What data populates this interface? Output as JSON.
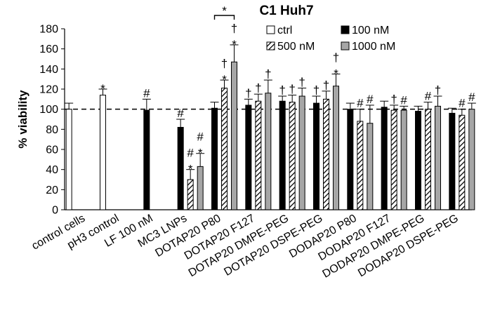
{
  "chart_data": {
    "type": "bar",
    "title": "C1 Huh7",
    "ylabel": "% viability",
    "xlabel": "",
    "ylim": [
      0,
      180
    ],
    "yticks": [
      0,
      20,
      40,
      60,
      80,
      100,
      120,
      140,
      160,
      180
    ],
    "grid": false,
    "reference_line": {
      "y": 100,
      "style": "dashed"
    },
    "legend_position": "top-right",
    "categories": [
      "control cells",
      "pH3 control",
      "LF 100 nM",
      "MC3 LNPs",
      "DOTAP20 P80",
      "DOTAP20 F127",
      "DOTAP20 DMPE-PEG",
      "DOTAP20 DSPE-PEG",
      "DODAP20 P80",
      "DODAP20 F127",
      "DODAP20 DMPE-PEG",
      "DODAP20 DSPE-PEG"
    ],
    "series": [
      {
        "name": "ctrl",
        "fill": "white",
        "values": [
          100,
          114,
          null,
          null,
          null,
          null,
          null,
          null,
          null,
          null,
          null,
          null
        ],
        "errors": [
          6,
          6,
          null,
          null,
          null,
          null,
          null,
          null,
          null,
          null,
          null,
          null
        ],
        "marks": [
          null,
          "*",
          null,
          null,
          null,
          null,
          null,
          null,
          null,
          null,
          null,
          null
        ]
      },
      {
        "name": "100 nM",
        "fill": "black",
        "values": [
          null,
          null,
          99,
          82,
          101,
          104,
          108,
          106,
          100,
          102,
          98,
          96
        ],
        "errors": [
          null,
          null,
          11,
          8,
          6,
          6,
          5,
          7,
          6,
          6,
          5,
          5
        ],
        "marks": [
          null,
          null,
          "#",
          "#",
          null,
          "†",
          "†",
          "†",
          null,
          null,
          null,
          null
        ]
      },
      {
        "name": "500 nM",
        "fill": "hatched",
        "values": [
          null,
          null,
          null,
          30,
          121,
          108,
          107,
          110,
          88,
          99,
          100,
          94
        ],
        "errors": [
          null,
          null,
          null,
          10,
          8,
          7,
          7,
          8,
          12,
          5,
          7,
          6
        ],
        "marks": [
          null,
          null,
          null,
          "#\n*",
          "†\n*",
          "†",
          "†",
          "†",
          "#",
          "†",
          "#",
          "#"
        ]
      },
      {
        "name": "1000 nM",
        "fill": "gray",
        "values": [
          null,
          null,
          null,
          43,
          147,
          116,
          113,
          123,
          86,
          99,
          103,
          100
        ],
        "errors": [
          null,
          null,
          null,
          13,
          17,
          13,
          8,
          12,
          18,
          4,
          10,
          6
        ],
        "marks": [
          null,
          null,
          null,
          "#\n*",
          "†\n*",
          "†",
          "†",
          "†\n*",
          "#",
          "#",
          "†",
          "#"
        ]
      }
    ],
    "bracket": {
      "from_category": "DOTAP20 P80",
      "from_series": "100 nM",
      "to_series": "1000 nM",
      "label": "*"
    }
  }
}
